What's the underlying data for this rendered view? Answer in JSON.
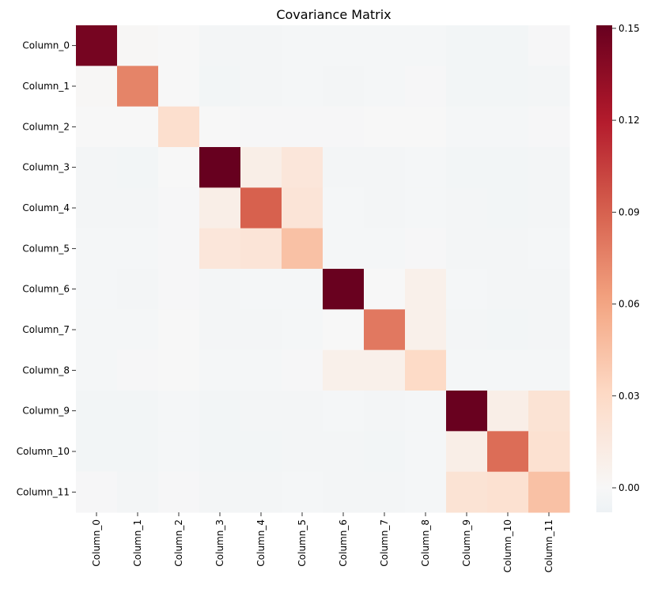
{
  "chart_data": {
    "type": "heatmap",
    "title": "Covariance Matrix",
    "xlabel": "",
    "ylabel": "",
    "rows": [
      "Column_0",
      "Column_1",
      "Column_2",
      "Column_3",
      "Column_4",
      "Column_5",
      "Column_6",
      "Column_7",
      "Column_8",
      "Column_9",
      "Column_10",
      "Column_11"
    ],
    "columns": [
      "Column_0",
      "Column_1",
      "Column_2",
      "Column_3",
      "Column_4",
      "Column_5",
      "Column_6",
      "Column_7",
      "Column_8",
      "Column_9",
      "Column_10",
      "Column_11"
    ],
    "values": [
      [
        0.145,
        0.001,
        0.0,
        -0.003,
        -0.003,
        -0.002,
        -0.002,
        -0.002,
        -0.002,
        -0.004,
        -0.004,
        -0.001
      ],
      [
        0.001,
        0.075,
        0.0,
        -0.004,
        -0.003,
        -0.002,
        -0.003,
        -0.002,
        -0.001,
        -0.004,
        -0.004,
        -0.003
      ],
      [
        0.0,
        0.0,
        0.026,
        0.0,
        -0.001,
        -0.001,
        -0.001,
        0.0,
        0.0,
        -0.002,
        -0.002,
        -0.001
      ],
      [
        -0.003,
        -0.004,
        0.0,
        0.152,
        0.01,
        0.018,
        -0.003,
        -0.003,
        -0.002,
        -0.004,
        -0.004,
        -0.003
      ],
      [
        -0.003,
        -0.003,
        -0.001,
        0.01,
        0.09,
        0.02,
        -0.002,
        -0.003,
        -0.002,
        -0.003,
        -0.004,
        -0.003
      ],
      [
        -0.002,
        -0.002,
        -0.001,
        0.018,
        0.02,
        0.045,
        -0.002,
        -0.002,
        -0.001,
        -0.003,
        -0.003,
        -0.002
      ],
      [
        -0.002,
        -0.003,
        -0.001,
        -0.003,
        -0.002,
        -0.002,
        0.15,
        0.0,
        0.008,
        -0.002,
        -0.003,
        -0.003
      ],
      [
        -0.002,
        -0.002,
        0.0,
        -0.003,
        -0.003,
        -0.002,
        0.0,
        0.08,
        0.008,
        -0.003,
        -0.004,
        -0.003
      ],
      [
        -0.002,
        -0.001,
        0.0,
        -0.002,
        -0.002,
        -0.001,
        0.008,
        0.008,
        0.03,
        -0.002,
        -0.002,
        -0.002
      ],
      [
        -0.004,
        -0.004,
        -0.002,
        -0.004,
        -0.003,
        -0.003,
        -0.002,
        -0.003,
        -0.002,
        0.15,
        0.01,
        0.022
      ],
      [
        -0.004,
        -0.004,
        -0.002,
        -0.004,
        -0.004,
        -0.003,
        -0.003,
        -0.004,
        -0.002,
        0.01,
        0.085,
        0.024
      ],
      [
        -0.001,
        -0.003,
        -0.001,
        -0.003,
        -0.003,
        -0.002,
        -0.003,
        -0.003,
        -0.002,
        0.022,
        0.024,
        0.045
      ]
    ],
    "vmin": -0.008,
    "vmax": 0.151,
    "center": 0.0,
    "colormap": "RdBu_r",
    "colorbar_ticks": [
      "0.15",
      "0.12",
      "0.09",
      "0.06",
      "0.03",
      "0.00"
    ],
    "colorbar_tick_values": [
      0.15,
      0.12,
      0.09,
      0.06,
      0.03,
      0.0
    ],
    "grid": false,
    "colors": {
      "dark_red": "#67001f",
      "mid_red": "#d6604d",
      "light_red": "#fddbc7",
      "neutral": "#f7f7f7",
      "light_blue": "#d1e5f0"
    }
  }
}
